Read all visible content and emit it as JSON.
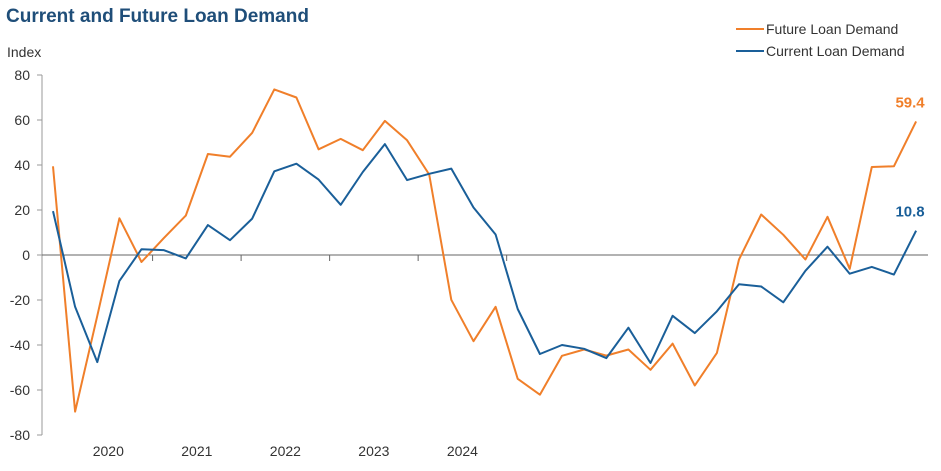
{
  "chart_data": {
    "type": "line",
    "title": "Current and Future Loan Demand",
    "ylabel": "Index",
    "ylim": [
      -80,
      80
    ],
    "yticks": [
      80,
      60,
      40,
      20,
      0,
      -20,
      -40,
      -60,
      -80
    ],
    "year_labels": [
      "2020",
      "2021",
      "2022",
      "2023",
      "2024"
    ],
    "legend_position": "top-right",
    "grid": false,
    "series": [
      {
        "name": "Future Loan Demand",
        "color": "#f07f2a",
        "last_label": "59.4",
        "values": [
          39.4,
          -69.6,
          -27,
          16.3,
          -3.1,
          7.4,
          17.5,
          44.9,
          43.7,
          54.3,
          73.6,
          70,
          47,
          51.6,
          46.6,
          59.6,
          51,
          35.8,
          -19.9,
          -38.3,
          -23,
          -55,
          -62.1,
          -44.8,
          -42,
          -44.7,
          -42,
          -51,
          -39.4,
          -58,
          -43.5,
          -2,
          18,
          9,
          -2,
          17,
          -6.2,
          39.1,
          39.4,
          59.4
        ]
      },
      {
        "name": "Current Loan Demand",
        "color": "#1a5f99",
        "last_label": "10.8",
        "values": [
          19.5,
          -23,
          -47.6,
          -11.5,
          2.6,
          2.2,
          -1.5,
          13.3,
          6.6,
          16.2,
          37.2,
          40.6,
          33.5,
          22.3,
          36.9,
          49.3,
          33.3,
          36.1,
          38.4,
          21.1,
          9.1,
          -24,
          -44,
          -40,
          -41.7,
          -45.8,
          -32.3,
          -48,
          -27,
          -34.7,
          -25,
          -13,
          -14,
          -21,
          -7,
          3.7,
          -8.3,
          -5.3,
          -8.7,
          10.8
        ]
      }
    ]
  }
}
